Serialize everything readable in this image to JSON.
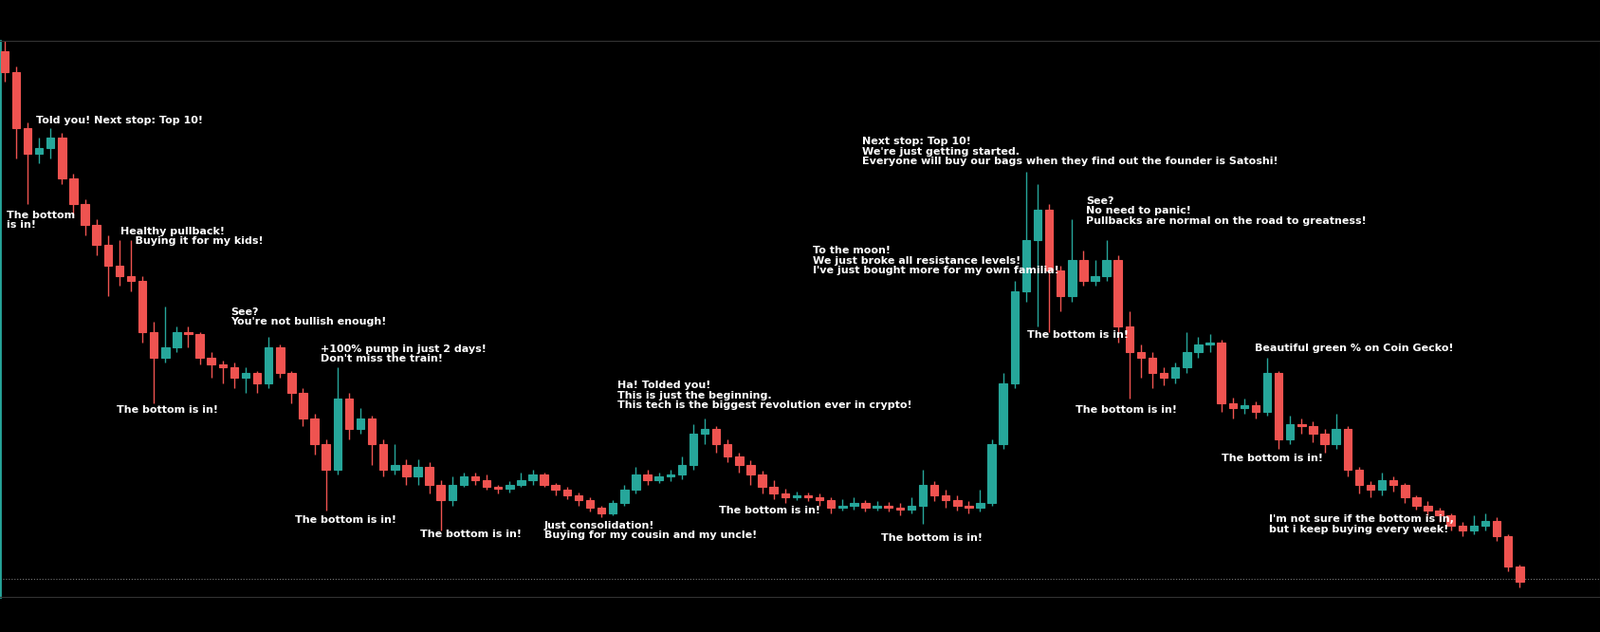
{
  "chart_data": {
    "type": "candlestick",
    "open": [
      525,
      505,
      450,
      425,
      430,
      440,
      400,
      375,
      355,
      335,
      315,
      305,
      300,
      250,
      225,
      235,
      250,
      248,
      225,
      218,
      215,
      205,
      210,
      200,
      235,
      210,
      190,
      165,
      140,
      115,
      185,
      155,
      165,
      140,
      115,
      120,
      108,
      118,
      100,
      85,
      100,
      108,
      105,
      98,
      96,
      100,
      105,
      110,
      100,
      95,
      90,
      85,
      78,
      72,
      82,
      95,
      110,
      105,
      108,
      110,
      120,
      150,
      155,
      140,
      128,
      120,
      110,
      98,
      92,
      88,
      90,
      88,
      85,
      78,
      80,
      82,
      78,
      80,
      78,
      76,
      80,
      100,
      90,
      85,
      80,
      78,
      82,
      140,
      200,
      290,
      340,
      370,
      310,
      285,
      320,
      300,
      305,
      320,
      255,
      230,
      225,
      210,
      205,
      215,
      230,
      238,
      240,
      180,
      175,
      178,
      172,
      210,
      145,
      160,
      158,
      150,
      140,
      155,
      115,
      100,
      95,
      105,
      100,
      88,
      80,
      75,
      70,
      60,
      55,
      60,
      65,
      50,
      20
    ],
    "high": [
      535,
      510,
      455,
      440,
      450,
      445,
      405,
      380,
      360,
      345,
      340,
      340,
      305,
      260,
      275,
      255,
      255,
      250,
      230,
      222,
      220,
      215,
      212,
      245,
      238,
      212,
      195,
      170,
      145,
      215,
      190,
      175,
      168,
      145,
      140,
      125,
      125,
      122,
      105,
      108,
      112,
      112,
      110,
      100,
      104,
      112,
      115,
      112,
      102,
      98,
      93,
      88,
      80,
      85,
      100,
      118,
      115,
      112,
      115,
      128,
      160,
      165,
      158,
      145,
      132,
      124,
      114,
      105,
      96,
      94,
      93,
      92,
      88,
      86,
      88,
      85,
      84,
      83,
      82,
      88,
      115,
      104,
      95,
      90,
      84,
      95,
      145,
      210,
      300,
      407,
      395,
      375,
      315,
      360,
      330,
      320,
      340,
      325,
      270,
      238,
      230,
      215,
      220,
      250,
      245,
      248,
      242,
      186,
      185,
      182,
      225,
      212,
      168,
      165,
      162,
      155,
      170,
      158,
      118,
      104,
      112,
      108,
      102,
      90,
      84,
      78,
      72,
      64,
      70,
      72,
      68,
      52,
      22
    ],
    "low": [
      495,
      420,
      375,
      415,
      420,
      395,
      365,
      345,
      325,
      285,
      295,
      290,
      240,
      180,
      220,
      230,
      235,
      218,
      205,
      200,
      195,
      190,
      190,
      195,
      205,
      180,
      158,
      130,
      75,
      110,
      145,
      150,
      120,
      108,
      110,
      100,
      100,
      92,
      55,
      80,
      98,
      100,
      95,
      92,
      93,
      98,
      100,
      98,
      90,
      86,
      80,
      74,
      68,
      70,
      80,
      92,
      100,
      102,
      104,
      106,
      115,
      140,
      132,
      122,
      112,
      100,
      92,
      86,
      82,
      85,
      84,
      80,
      72,
      75,
      76,
      74,
      75,
      74,
      70,
      72,
      62,
      84,
      78,
      75,
      72,
      74,
      80,
      135,
      195,
      280,
      255,
      250,
      270,
      280,
      295,
      295,
      300,
      240,
      185,
      205,
      195,
      198,
      200,
      210,
      225,
      230,
      172,
      165,
      170,
      165,
      168,
      135,
      140,
      150,
      142,
      132,
      135,
      108,
      92,
      88,
      90,
      94,
      82,
      76,
      70,
      64,
      55,
      50,
      52,
      55,
      45,
      15,
      0
    ],
    "close": [
      505,
      450,
      425,
      430,
      440,
      400,
      375,
      355,
      335,
      315,
      305,
      300,
      250,
      225,
      235,
      250,
      248,
      225,
      218,
      215,
      205,
      210,
      200,
      235,
      210,
      190,
      165,
      140,
      115,
      185,
      155,
      165,
      140,
      115,
      120,
      108,
      118,
      100,
      85,
      100,
      108,
      105,
      98,
      96,
      100,
      105,
      110,
      100,
      95,
      90,
      85,
      78,
      72,
      82,
      95,
      110,
      105,
      108,
      110,
      120,
      150,
      155,
      140,
      128,
      120,
      110,
      98,
      92,
      88,
      90,
      88,
      85,
      78,
      80,
      82,
      78,
      80,
      78,
      76,
      80,
      100,
      90,
      85,
      80,
      78,
      82,
      140,
      200,
      290,
      340,
      370,
      310,
      285,
      320,
      300,
      305,
      320,
      255,
      230,
      225,
      210,
      205,
      215,
      230,
      238,
      240,
      180,
      175,
      178,
      172,
      210,
      145,
      160,
      158,
      150,
      140,
      155,
      115,
      100,
      95,
      105,
      100,
      88,
      80,
      75,
      70,
      60,
      55,
      60,
      65,
      50,
      20,
      5
    ],
    "color": {
      "up": "#26a69a",
      "down": "#ef5350"
    },
    "price_line": 8,
    "xlim": [
      -0.4,
      139
    ],
    "ylim": [
      -10,
      535
    ],
    "xticks": [],
    "yticks": [],
    "grid": false,
    "tick_labels": false,
    "annotations": [
      {
        "text": "Told you! Next stop: Top 10!",
        "x": 2.76,
        "y": 462
      },
      {
        "text": "The bottom\nis in!",
        "x": 0.18,
        "y": 369
      },
      {
        "text": "Healthy pullback!\n    Buying it for my kids!",
        "x": 10.1,
        "y": 353
      },
      {
        "text": "The bottom is in!",
        "x": 9.8,
        "y": 178
      },
      {
        "text": "See?\nYou're not bullish enough!",
        "x": 19.7,
        "y": 274
      },
      {
        "text": "+100% pump in just 2 days!\nDon't miss the train!",
        "x": 27.5,
        "y": 238
      },
      {
        "text": "The bottom is in!",
        "x": 25.3,
        "y": 70
      },
      {
        "text": "The bottom is in!",
        "x": 36.2,
        "y": 56
      },
      {
        "text": "Just consolidation!\nBuying for my cousin and my uncle!",
        "x": 47.0,
        "y": 65
      },
      {
        "text": "Ha! Tolded you!\nThis is just the beginning.\nThis tech is the biggest revolution ever in crypto!",
        "x": 53.4,
        "y": 202
      },
      {
        "text": "The bottom is in!",
        "x": 62.2,
        "y": 80
      },
      {
        "text": "To the moon!\nWe just broke all resistance levels!\nI've just bought more for my own familia!",
        "x": 70.4,
        "y": 334
      },
      {
        "text": "The bottom is in!",
        "x": 76.4,
        "y": 53
      },
      {
        "text": "Next stop: Top 10!\nWe're just getting started.\nEveryone will buy our bags when they find out the founder is Satoshi!",
        "x": 74.7,
        "y": 441
      },
      {
        "text": "The bottom is in!",
        "x": 89.1,
        "y": 252
      },
      {
        "text": "See?\nNo need to panic!\nPullbacks are normal on the road to greatness!",
        "x": 94.2,
        "y": 383
      },
      {
        "text": "The bottom is in!",
        "x": 93.3,
        "y": 178
      },
      {
        "text": "Beautiful green % on Coin Gecko!",
        "x": 108.9,
        "y": 239
      },
      {
        "text": "The bottom is in!",
        "x": 106.0,
        "y": 131
      },
      {
        "text": "I'm not sure if the bottom is in,\nbut i keep buying every week!",
        "x": 110.2,
        "y": 71
      }
    ]
  }
}
